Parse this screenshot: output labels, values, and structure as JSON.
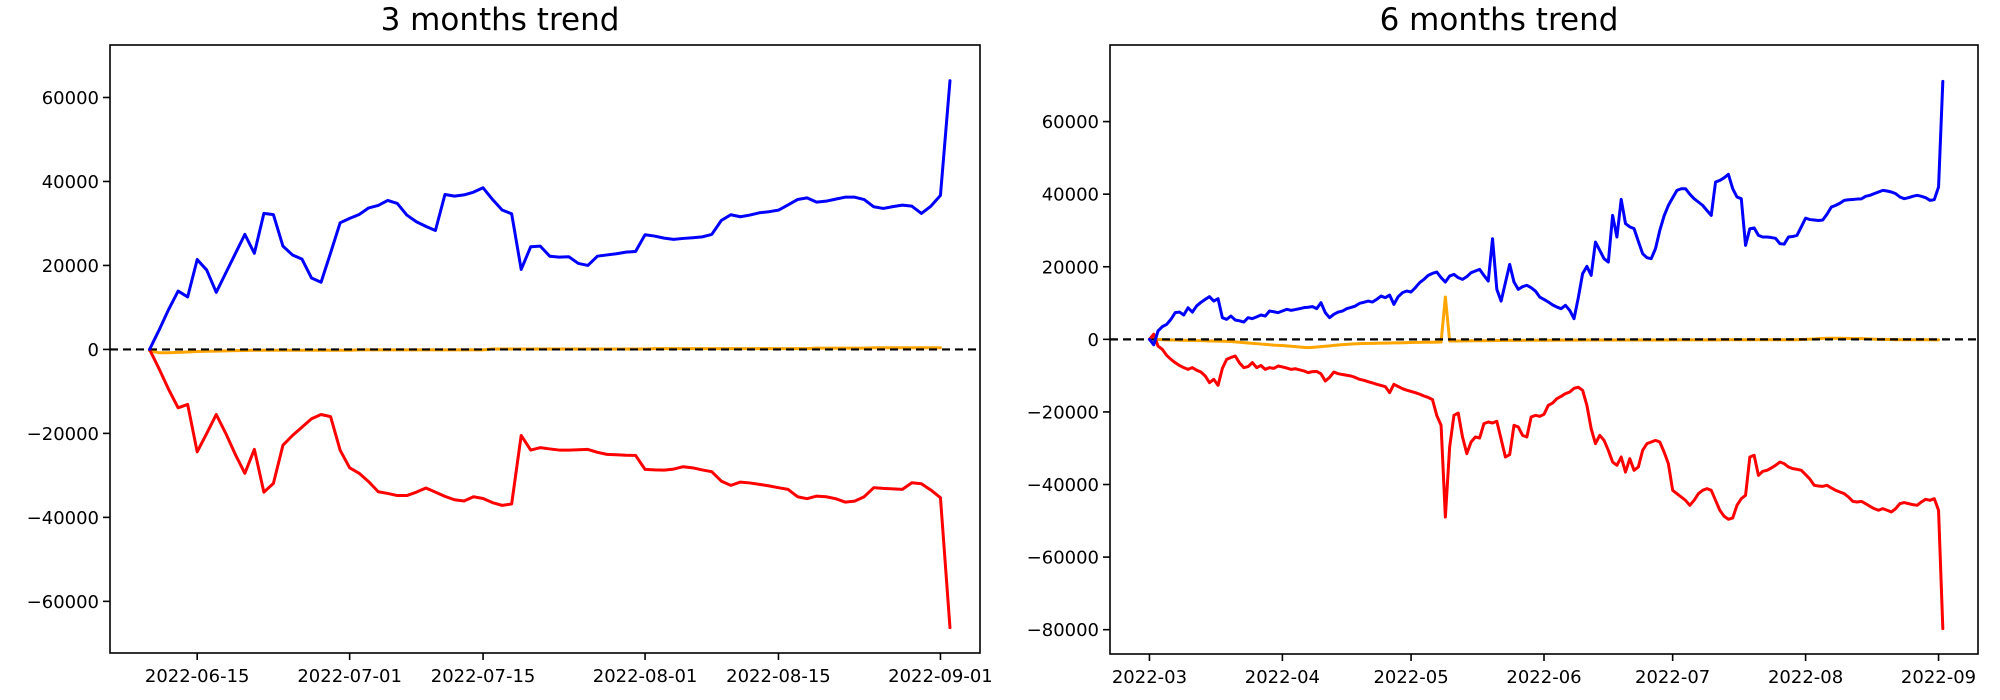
{
  "page": {
    "background": "#ffffff"
  },
  "chart_data": [
    {
      "type": "line",
      "title": "3 months trend",
      "xlabel": "",
      "ylabel": "",
      "grid": false,
      "legend": "none",
      "x_unit": "daily points starting at start_date",
      "start_date": "2022-06-10",
      "x_tick_labels": [
        "2022-06-15",
        "2022-07-01",
        "2022-07-15",
        "2022-08-01",
        "2022-08-15",
        "2022-09-01"
      ],
      "x_tick_indices": [
        5,
        21,
        35,
        52,
        66,
        83
      ],
      "y_ticks": [
        -60000,
        -40000,
        -20000,
        0,
        20000,
        40000,
        60000
      ],
      "ylim": [
        -72300,
        72500
      ],
      "x_margin_frac": 0.05,
      "zero_line": {
        "style": "dashed",
        "color": "#000000"
      },
      "axis_color": "#000000",
      "series": [
        {
          "name": "orange-flat",
          "color": "#ffa500",
          "values": [
            -300,
            -800,
            -800,
            -700,
            -600,
            -500,
            -450,
            -400,
            -350,
            -300,
            -250,
            -200,
            -200,
            -200,
            -200,
            -200,
            -200,
            -200,
            -200,
            -200,
            -200,
            -200,
            -100,
            -100,
            -100,
            -100,
            -100,
            -100,
            -100,
            -100,
            -100,
            -100,
            -100,
            -100,
            -100,
            -100,
            100,
            100,
            100,
            100,
            100,
            100,
            100,
            100,
            100,
            100,
            100,
            100,
            100,
            100,
            100,
            100,
            100,
            200,
            200,
            200,
            200,
            200,
            200,
            200,
            200,
            200,
            200,
            200,
            200,
            200,
            200,
            200,
            200,
            200,
            300,
            300,
            300,
            300,
            300,
            300,
            400,
            400,
            400,
            400,
            400,
            400,
            400,
            400
          ]
        },
        {
          "name": "red-declining",
          "color": "#ff0000",
          "values": [
            0,
            -4600,
            -9500,
            -13900,
            -13100,
            -24400,
            -20000,
            -15500,
            -20000,
            -25000,
            -29500,
            -23800,
            -34000,
            -31900,
            -22800,
            -20500,
            -18500,
            -16500,
            -15500,
            -16000,
            -24000,
            -28200,
            -29500,
            -31500,
            -33900,
            -34300,
            -34800,
            -34800,
            -34000,
            -33000,
            -34000,
            -35000,
            -35800,
            -36100,
            -35080,
            -35500,
            -36500,
            -37140,
            -36800,
            -20500,
            -23970,
            -23400,
            -23700,
            -23970,
            -23970,
            -23900,
            -23810,
            -24500,
            -25000,
            -25100,
            -25200,
            -25240,
            -28570,
            -28700,
            -28740,
            -28500,
            -27930,
            -28200,
            -28700,
            -29120,
            -31360,
            -32380,
            -31600,
            -31800,
            -32140,
            -32500,
            -32930,
            -33330,
            -35080,
            -35550,
            -34930,
            -35080,
            -35550,
            -36360,
            -36120,
            -35080,
            -32930,
            -33100,
            -33200,
            -33330,
            -31750,
            -32000,
            -33500,
            -35310,
            -66270
          ]
        },
        {
          "name": "blue-rising",
          "color": "#0000ff",
          "values": [
            0,
            4600,
            9500,
            13900,
            12500,
            21400,
            18900,
            13600,
            18200,
            22800,
            27400,
            22900,
            32400,
            32100,
            24600,
            22500,
            21500,
            17000,
            16000,
            23000,
            30150,
            31200,
            32140,
            33700,
            34300,
            35480,
            34760,
            32000,
            30400,
            29300,
            28330,
            36900,
            36500,
            36800,
            37450,
            38500,
            35700,
            33200,
            32300,
            19050,
            24450,
            24600,
            22200,
            21980,
            22070,
            20480,
            20000,
            22200,
            22500,
            22780,
            23170,
            23330,
            27300,
            27000,
            26500,
            26200,
            26430,
            26600,
            26800,
            27380,
            30710,
            32070,
            31600,
            32000,
            32540,
            32800,
            33170,
            34400,
            35700,
            36100,
            35080,
            35310,
            35800,
            36260,
            36260,
            35700,
            33970,
            33570,
            34000,
            34360,
            34120,
            32380,
            34120,
            36680,
            64000
          ]
        }
      ]
    },
    {
      "type": "line",
      "title": "6 months trend",
      "xlabel": "",
      "ylabel": "",
      "grid": false,
      "legend": "none",
      "x_unit": "daily points starting at start_date",
      "start_date": "2022-03-01",
      "x_tick_labels": [
        "2022-03",
        "2022-04",
        "2022-05",
        "2022-06",
        "2022-07",
        "2022-08",
        "2022-09"
      ],
      "x_tick_indices": [
        0,
        31,
        61,
        92,
        122,
        153,
        184
      ],
      "y_ticks": [
        -80000,
        -60000,
        -40000,
        -20000,
        0,
        20000,
        40000,
        60000
      ],
      "ylim": [
        -86700,
        81100
      ],
      "x_margin_frac": 0.05,
      "zero_line": {
        "style": "dashed",
        "color": "#000000"
      },
      "axis_color": "#000000",
      "series": [
        {
          "name": "orange-flat",
          "color": "#ffa500",
          "values": [
            0,
            300,
            0,
            -100,
            -150,
            -200,
            -200,
            -250,
            -250,
            -300,
            -300,
            -350,
            -350,
            -400,
            -450,
            -450,
            -500,
            -500,
            -550,
            -600,
            -700,
            -800,
            -900,
            -1000,
            -1100,
            -1200,
            -1300,
            -1400,
            -1500,
            -1600,
            -1650,
            -1700,
            -1800,
            -1900,
            -2000,
            -2100,
            -2200,
            -2290,
            -2200,
            -2100,
            -2000,
            -1900,
            -1800,
            -1650,
            -1550,
            -1450,
            -1400,
            -1300,
            -1250,
            -1180,
            -1150,
            -1120,
            -1100,
            -1080,
            -1050,
            -1030,
            -1010,
            -990,
            -970,
            -950,
            -900,
            -870,
            -850,
            -850,
            -820,
            -800,
            -800,
            -780,
            -750,
            11660,
            -470,
            -450,
            -450,
            -430,
            -430,
            -400,
            -400,
            -380,
            -380,
            -350,
            -350,
            -330,
            -330,
            -300,
            -300,
            -300,
            -280,
            -280,
            -260,
            -260,
            -250,
            -250,
            -250,
            -240,
            -240,
            -230,
            -230,
            -220,
            -220,
            -210,
            -210,
            -200,
            -200,
            -200,
            -200,
            -200,
            -200,
            -200,
            -200,
            -200,
            -200,
            -200,
            -200,
            -200,
            -200,
            -200,
            -190,
            -190,
            -180,
            -180,
            -170,
            -170,
            -160,
            -160,
            -150,
            -150,
            -150,
            -150,
            -150,
            -150,
            -150,
            -150,
            -140,
            -140,
            -130,
            -130,
            -120,
            -120,
            -110,
            -110,
            -100,
            -100,
            -100,
            -100,
            -100,
            -100,
            -100,
            -100,
            -100,
            -100,
            -100,
            -100,
            -50,
            0,
            50,
            100,
            200,
            250,
            300,
            300,
            300,
            300,
            250,
            250,
            200,
            200,
            200,
            150,
            100,
            50,
            0,
            0,
            -50,
            -50,
            -100,
            -100,
            -100,
            -100,
            -100,
            -100,
            -100,
            -100,
            -120,
            -150,
            -150
          ]
        },
        {
          "name": "red-declining",
          "color": "#ff0000",
          "values": [
            0,
            1400,
            -1840,
            -2755,
            -4400,
            -5500,
            -6420,
            -7200,
            -7800,
            -8265,
            -7800,
            -8500,
            -9000,
            -10100,
            -11930,
            -11020,
            -12670,
            -8000,
            -5510,
            -5000,
            -4590,
            -6500,
            -7800,
            -7500,
            -6420,
            -7800,
            -7200,
            -8265,
            -7800,
            -8000,
            -7350,
            -7600,
            -7900,
            -8265,
            -8100,
            -8400,
            -8700,
            -9175,
            -8900,
            -8850,
            -9500,
            -11480,
            -10500,
            -9000,
            -9460,
            -9700,
            -9900,
            -10100,
            -10500,
            -11020,
            -11300,
            -11660,
            -12000,
            -12400,
            -12700,
            -13040,
            -14700,
            -12400,
            -13000,
            -13590,
            -14000,
            -14350,
            -14700,
            -15100,
            -15610,
            -16000,
            -16610,
            -21000,
            -23690,
            -48960,
            -29670,
            -20940,
            -20300,
            -26910,
            -31500,
            -28290,
            -26910,
            -27180,
            -23220,
            -22770,
            -23050,
            -22580,
            -27500,
            -32420,
            -31760,
            -23690,
            -24150,
            -26450,
            -26910,
            -21400,
            -20940,
            -21220,
            -20660,
            -18180,
            -17550,
            -16340,
            -15700,
            -14960,
            -14520,
            -13500,
            -13200,
            -14050,
            -18180,
            -24610,
            -28740,
            -26450,
            -27830,
            -30580,
            -33800,
            -34710,
            -32420,
            -36560,
            -32880,
            -36090,
            -35170,
            -30580,
            -28740,
            -28290,
            -27830,
            -28290,
            -31040,
            -34250,
            -41600,
            -42520,
            -43440,
            -44350,
            -45730,
            -44350,
            -42520,
            -41600,
            -41140,
            -41600,
            -44350,
            -47100,
            -48750,
            -49580,
            -49220,
            -45730,
            -43890,
            -42980,
            -32420,
            -31960,
            -37480,
            -36370,
            -36090,
            -35450,
            -34710,
            -33800,
            -34250,
            -35170,
            -35630,
            -35810,
            -36090,
            -37270,
            -38500,
            -40220,
            -40400,
            -40500,
            -40220,
            -40960,
            -41600,
            -42060,
            -42520,
            -43440,
            -44640,
            -44810,
            -44640,
            -45270,
            -46000,
            -46650,
            -47100,
            -46650,
            -47100,
            -47560,
            -46650,
            -45270,
            -44980,
            -45270,
            -45550,
            -45730,
            -44810,
            -44070,
            -44350,
            -43890,
            -47100,
            -79710
          ]
        },
        {
          "name": "blue-rising",
          "color": "#0000ff",
          "values": [
            0,
            -1500,
            2300,
            3500,
            4100,
            5500,
            7350,
            7520,
            6700,
            8700,
            7500,
            9200,
            10200,
            11000,
            11760,
            10550,
            11200,
            5970,
            5510,
            6420,
            5320,
            5100,
            4770,
            5970,
            5700,
            6200,
            6700,
            6420,
            7800,
            7600,
            7350,
            7800,
            8265,
            7990,
            8200,
            8450,
            8725,
            8850,
            9000,
            8450,
            10100,
            7350,
            5970,
            6890,
            7520,
            7800,
            8450,
            8800,
            9175,
            9920,
            10200,
            10550,
            10280,
            11020,
            11930,
            11480,
            12200,
            9640,
            11760,
            12860,
            13310,
            13040,
            14240,
            15610,
            16530,
            17630,
            18180,
            18550,
            17000,
            15790,
            17440,
            17900,
            17000,
            16530,
            17270,
            18370,
            18820,
            19280,
            17600,
            16060,
            27730,
            13770,
            10550,
            15610,
            20660,
            15790,
            13770,
            14510,
            14880,
            14240,
            13310,
            11660,
            11000,
            10280,
            9500,
            8900,
            8450,
            9370,
            7990,
            5700,
            11480,
            18090,
            20110,
            17630,
            26800,
            24520,
            22230,
            21290,
            34160,
            28190,
            38570,
            31900,
            31000,
            30500,
            27000,
            23600,
            22500,
            22230,
            25000,
            30000,
            34000,
            36900,
            39000,
            41050,
            41500,
            41500,
            40000,
            38760,
            37840,
            36910,
            35500,
            34160,
            43330,
            43790,
            44500,
            45460,
            41510,
            39220,
            38760,
            25900,
            30490,
            30700,
            28650,
            28190,
            28190,
            28050,
            27840,
            26360,
            26220,
            28190,
            28330,
            28650,
            31000,
            33400,
            33000,
            32880,
            32740,
            32880,
            34500,
            36450,
            36910,
            37500,
            38300,
            38450,
            38540,
            38650,
            38700,
            39400,
            39680,
            40140,
            40600,
            41050,
            40870,
            40600,
            40140,
            39220,
            38760,
            39030,
            39400,
            39680,
            39400,
            39030,
            38300,
            38480,
            41970,
            71080
          ]
        }
      ]
    }
  ]
}
